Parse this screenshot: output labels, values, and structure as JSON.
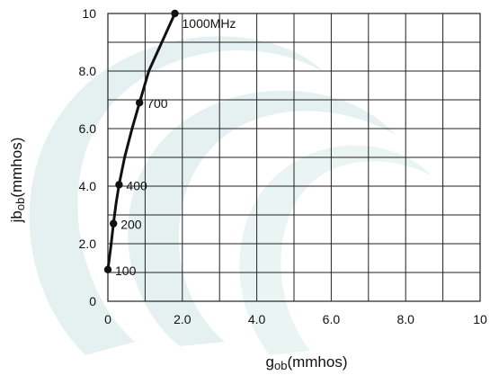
{
  "chart_data": {
    "type": "line",
    "xlabel": {
      "main": "g",
      "sub": "ob",
      "rest": "(mmhos)"
    },
    "ylabel": {
      "main": "jb",
      "sub": "ob",
      "rest": "(mmhos)"
    },
    "xlim": [
      0,
      10
    ],
    "ylim": [
      0,
      10
    ],
    "grid": true,
    "x_ticks": [
      0,
      2,
      4,
      6,
      8,
      10
    ],
    "x_tick_labels": [
      "0",
      "2.0",
      "4.0",
      "6.0",
      "8.0",
      "10"
    ],
    "y_ticks": [
      0,
      2,
      4,
      6,
      8,
      10
    ],
    "y_tick_labels": [
      "0",
      "2.0",
      "4.0",
      "6.0",
      "8.0",
      "10"
    ],
    "series": [
      {
        "x": [
          0.0,
          0.15,
          0.3,
          0.85,
          1.8
        ],
        "y": [
          1.1,
          2.7,
          4.05,
          6.9,
          10.0
        ],
        "labels": [
          "100",
          "200",
          "400",
          "700",
          "1000MHz"
        ]
      }
    ],
    "curve": {
      "x": [
        0.0,
        0.08,
        0.15,
        0.22,
        0.3,
        0.45,
        0.65,
        0.85,
        1.1,
        1.45,
        1.8
      ],
      "y": [
        1.1,
        1.9,
        2.7,
        3.4,
        4.05,
        5.0,
        6.0,
        6.9,
        8.0,
        9.0,
        10.0
      ]
    },
    "colors": {
      "line": "#111111",
      "grid": "#222222",
      "watermark": "#cfe6e5"
    }
  }
}
